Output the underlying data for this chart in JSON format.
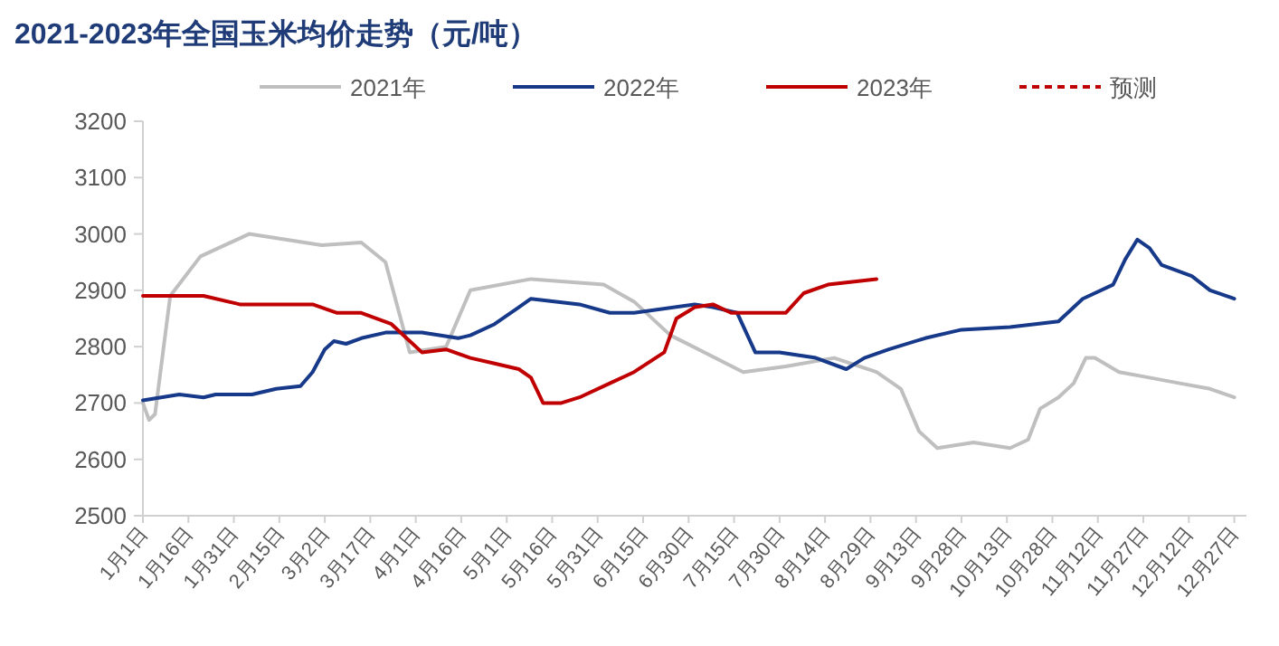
{
  "chart_data": {
    "type": "line",
    "title": "2021-2023年全国玉米均价走势（元/吨）",
    "legend": "top",
    "xlim": [
      "--01-01",
      "--12-31"
    ],
    "xticks": [
      {
        "value": "--01-01",
        "label": "1月1日"
      },
      {
        "value": "--01-16",
        "label": "1月16日"
      },
      {
        "value": "--01-31",
        "label": "1月31日"
      },
      {
        "value": "--02-15",
        "label": "2月15日"
      },
      {
        "value": "--03-02",
        "label": "3月2日"
      },
      {
        "value": "--03-17",
        "label": "3月17日"
      },
      {
        "value": "--04-01",
        "label": "4月1日"
      },
      {
        "value": "--04-16",
        "label": "4月16日"
      },
      {
        "value": "--05-01",
        "label": "5月1日"
      },
      {
        "value": "--05-16",
        "label": "5月16日"
      },
      {
        "value": "--05-31",
        "label": "5月31日"
      },
      {
        "value": "--06-15",
        "label": "6月15日"
      },
      {
        "value": "--06-30",
        "label": "6月30日"
      },
      {
        "value": "--07-15",
        "label": "7月15日"
      },
      {
        "value": "--07-30",
        "label": "7月30日"
      },
      {
        "value": "--08-14",
        "label": "8月14日"
      },
      {
        "value": "--08-29",
        "label": "8月29日"
      },
      {
        "value": "--09-13",
        "label": "9月13日"
      },
      {
        "value": "--09-28",
        "label": "9月28日"
      },
      {
        "value": "--10-13",
        "label": "10月13日"
      },
      {
        "value": "--10-28",
        "label": "10月28日"
      },
      {
        "value": "--11-12",
        "label": "11月12日"
      },
      {
        "value": "--11-27",
        "label": "11月27日"
      },
      {
        "value": "--12-12",
        "label": "12月12日"
      },
      {
        "value": "--12-27",
        "label": "12月27日"
      }
    ],
    "ylim": [
      2500,
      3200
    ],
    "yticks": [
      2500,
      2600,
      2700,
      2800,
      2900,
      3000,
      3100,
      3200
    ],
    "series": [
      {
        "name": "2021年",
        "color": "#bfbfbf",
        "line_style": "solid",
        "x": [
          "--01-01",
          "--01-03",
          "--01-05",
          "--01-10",
          "--01-20",
          "--02-05",
          "--03-01",
          "--03-14",
          "--03-22",
          "--03-30",
          "--04-11",
          "--04-19",
          "--05-09",
          "--06-02",
          "--06-12",
          "--06-24",
          "--07-18",
          "--08-01",
          "--08-17",
          "--08-31",
          "--09-08",
          "--09-14",
          "--09-20",
          "--10-02",
          "--10-14",
          "--10-20",
          "--10-24",
          "--10-30",
          "--11-04",
          "--11-08",
          "--11-11",
          "--11-19",
          "--11-29",
          "--12-09",
          "--12-19",
          "--12-27"
        ],
        "values": [
          2700,
          2670,
          2680,
          2890,
          2960,
          3000,
          2980,
          2985,
          2950,
          2790,
          2800,
          2900,
          2920,
          2910,
          2880,
          2820,
          2755,
          2765,
          2780,
          2755,
          2725,
          2650,
          2620,
          2630,
          2620,
          2635,
          2690,
          2710,
          2735,
          2780,
          2780,
          2755,
          2745,
          2735,
          2725,
          2710
        ]
      },
      {
        "name": "2022年",
        "color": "#17398a",
        "line_style": "solid",
        "x": [
          "--01-01",
          "--01-13",
          "--01-21",
          "--01-25",
          "--02-06",
          "--02-14",
          "--02-22",
          "--02-26",
          "--03-02",
          "--03-05",
          "--03-09",
          "--03-14",
          "--03-22",
          "--04-03",
          "--04-15",
          "--04-19",
          "--04-27",
          "--05-05",
          "--05-09",
          "--05-25",
          "--06-04",
          "--06-12",
          "--07-02",
          "--07-08",
          "--07-16",
          "--07-22",
          "--07-30",
          "--08-11",
          "--08-21",
          "--08-27",
          "--09-04",
          "--09-16",
          "--09-28",
          "--10-14",
          "--10-30",
          "--11-07",
          "--11-17",
          "--11-21",
          "--11-25",
          "--11-29",
          "--12-03",
          "--12-13",
          "--12-19",
          "--12-27"
        ],
        "values": [
          2705,
          2715,
          2710,
          2715,
          2715,
          2725,
          2730,
          2755,
          2795,
          2810,
          2805,
          2815,
          2825,
          2825,
          2815,
          2820,
          2840,
          2870,
          2885,
          2875,
          2860,
          2860,
          2875,
          2870,
          2860,
          2790,
          2790,
          2780,
          2760,
          2780,
          2795,
          2815,
          2830,
          2835,
          2845,
          2885,
          2910,
          2955,
          2990,
          2975,
          2945,
          2925,
          2900,
          2885
        ]
      },
      {
        "name": "2023年",
        "color": "#c00000",
        "line_style": "solid",
        "x": [
          "--01-01",
          "--01-21",
          "--02-02",
          "--02-18",
          "--02-26",
          "--03-06",
          "--03-14",
          "--03-24",
          "--03-30",
          "--04-03",
          "--04-11",
          "--04-19",
          "--04-27",
          "--05-05",
          "--05-09",
          "--05-13",
          "--05-19",
          "--05-25",
          "--06-04",
          "--06-12",
          "--06-22",
          "--06-26",
          "--07-02",
          "--07-08",
          "--07-14",
          "--07-22",
          "--08-01",
          "--08-07",
          "--08-15",
          "--08-23",
          "--08-31"
        ],
        "values": [
          2890,
          2890,
          2875,
          2875,
          2875,
          2860,
          2860,
          2840,
          2810,
          2790,
          2795,
          2780,
          2770,
          2760,
          2745,
          2700,
          2700,
          2710,
          2735,
          2755,
          2790,
          2850,
          2870,
          2875,
          2860,
          2860,
          2860,
          2895,
          2910,
          2915,
          2920
        ]
      },
      {
        "name": "预测",
        "color": "#c00000",
        "line_style": "dashed"
      }
    ]
  }
}
